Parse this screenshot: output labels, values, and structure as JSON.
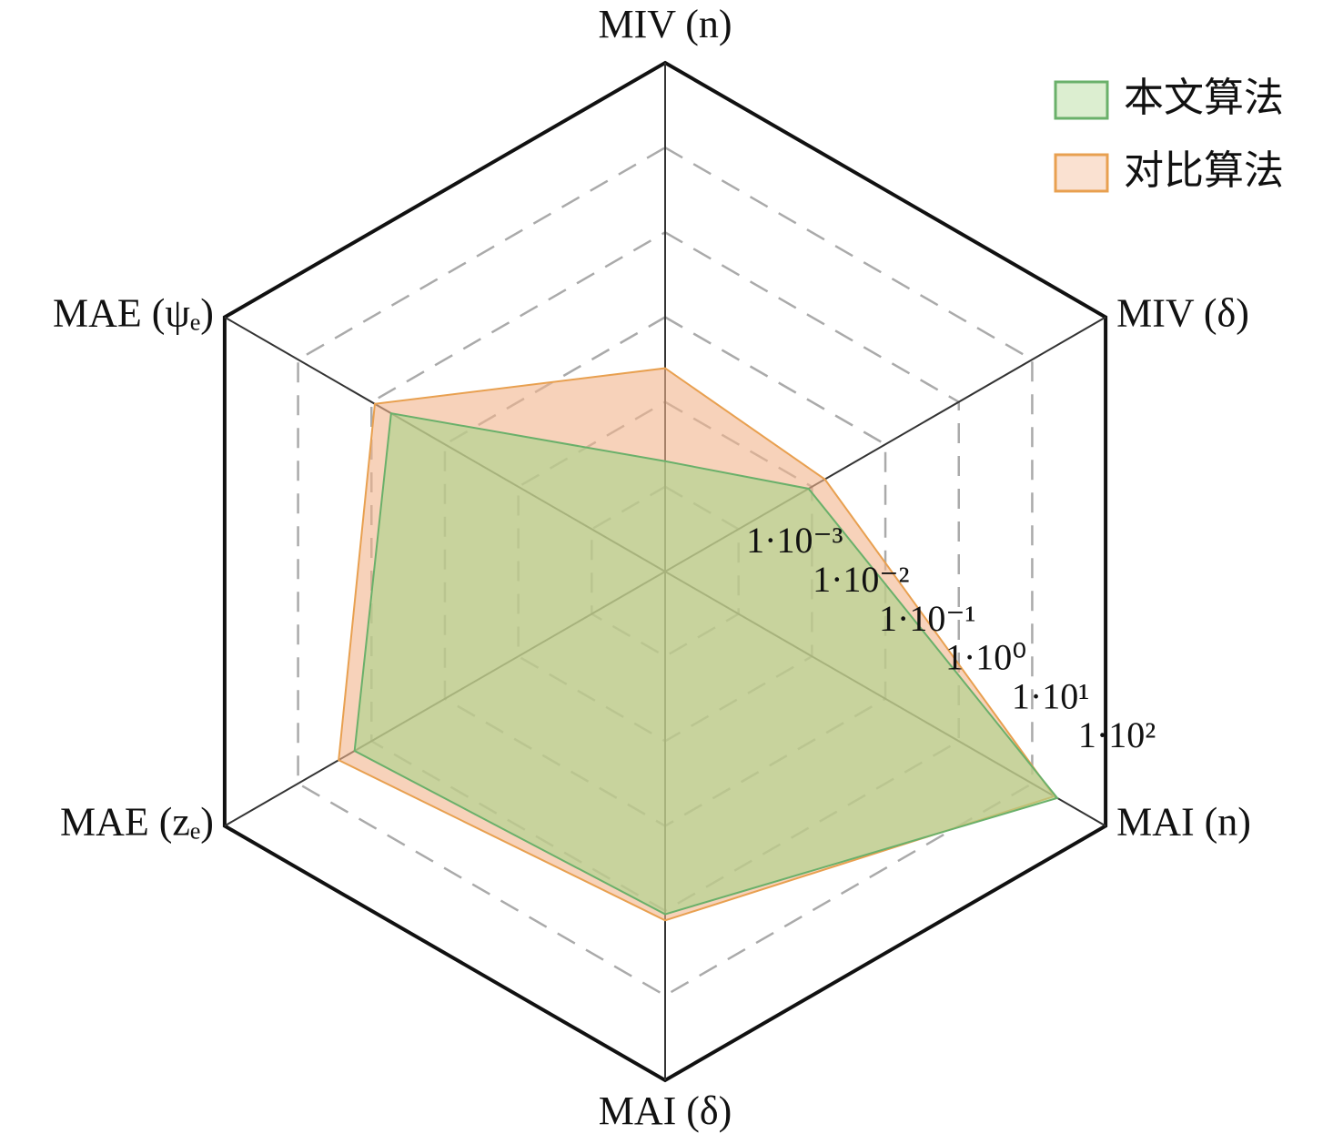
{
  "chart_data": {
    "type": "radar",
    "categories": [
      "MIV (n)",
      "MIV (δ)",
      "MAI (n)",
      "MAI (δ)",
      "MAE (zₑ)",
      "MAE (ψₑ)"
    ],
    "series": [
      {
        "name": "本文算法",
        "color": "#6ab06a",
        "fill": "#a8d48a",
        "values": [
          0.002,
          0.009,
          22,
          1.1,
          1.7,
          0.54
        ]
      },
      {
        "name": "对比算法",
        "color": "#e8a050",
        "fill": "#f2b48c",
        "values": [
          0.025,
          0.015,
          20,
          1.3,
          2.8,
          0.9
        ]
      }
    ],
    "rlim": [
      0.0001,
      100
    ],
    "log_scale": true,
    "rticks": [
      {
        "value": 0.001,
        "label": "1·10⁻³"
      },
      {
        "value": 0.01,
        "label": "1·10⁻²"
      },
      {
        "value": 0.1,
        "label": "1·10⁻¹"
      },
      {
        "value": 1,
        "label": "1·10⁰"
      },
      {
        "value": 10,
        "label": "1·10¹"
      },
      {
        "value": 100,
        "label": "1·10²"
      }
    ],
    "grid": true,
    "legend": "upper right"
  }
}
